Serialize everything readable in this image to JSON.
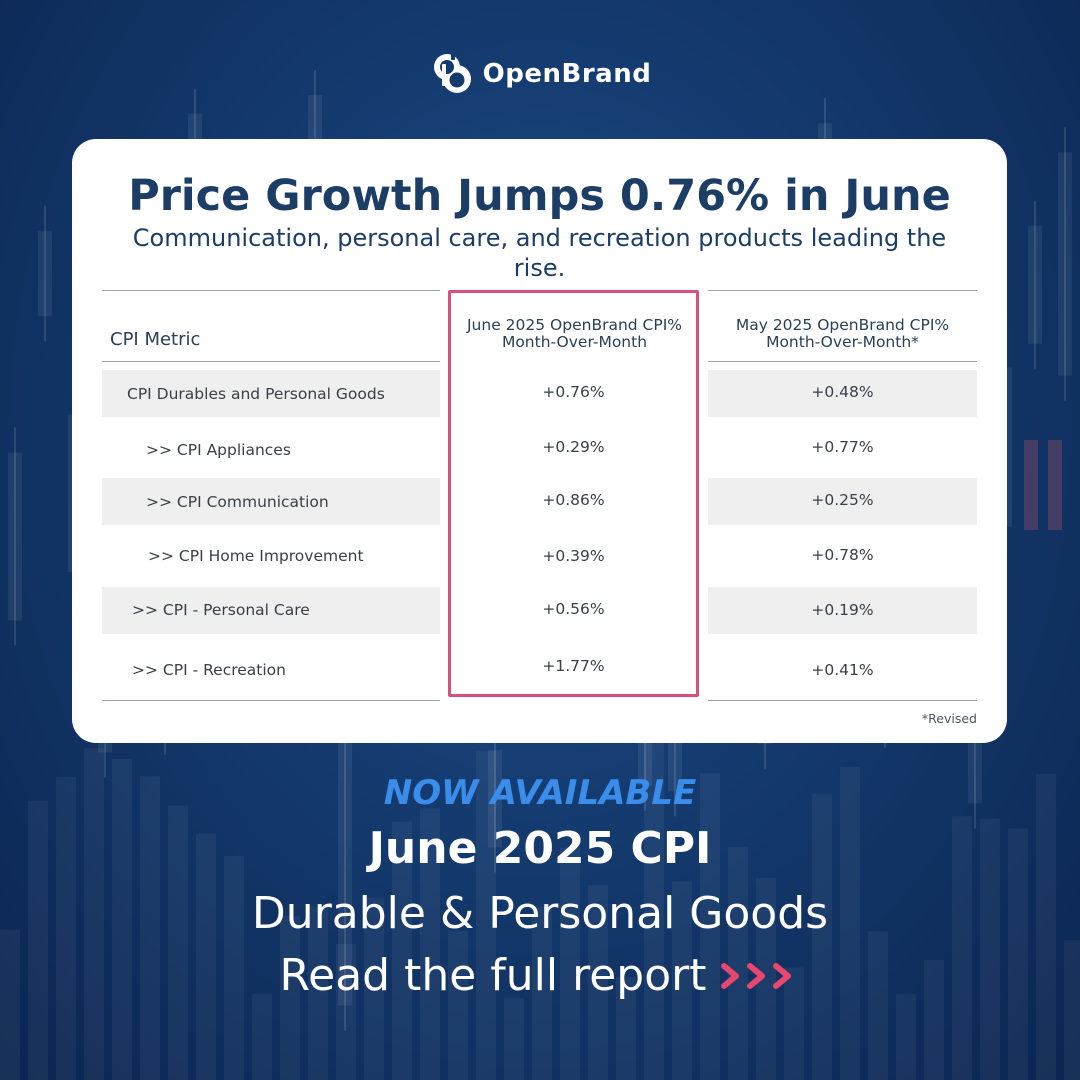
{
  "brand": {
    "name": "OpenBrand",
    "logo_icon": "ob-logo-icon"
  },
  "headline": "Price Growth Jumps 0.76% in June",
  "subheadline": "Communication, personal care, and recreation products leading the rise.",
  "chart_data": {
    "type": "table",
    "columns": [
      "CPI Metric",
      "June 2025 OpenBrand CPI% Month-Over-Month",
      "May 2025 OpenBrand CPI% Month-Over-Month*"
    ],
    "header_lines": {
      "june": [
        "June 2025 OpenBrand CPI%",
        "Month-Over-Month"
      ],
      "may": [
        "May 2025 OpenBrand CPI%",
        "Month-Over-Month*"
      ]
    },
    "rows": [
      {
        "metric": "CPI Durables and Personal Goods",
        "june": "+0.76%",
        "may": "+0.48%"
      },
      {
        "metric": ">> CPI Appliances",
        "june": "+0.29%",
        "may": "+0.77%"
      },
      {
        "metric": ">> CPI Communication",
        "june": "+0.86%",
        "may": "+0.25%"
      },
      {
        "metric": ">> CPI Home Improvement",
        "june": "+0.39%",
        "may": "+0.78%"
      },
      {
        "metric": ">> CPI - Personal Care",
        "june": "+0.56%",
        "may": "+0.19%"
      },
      {
        "metric": ">> CPI - Recreation",
        "june": "+1.77%",
        "may": "+0.41%"
      }
    ],
    "highlighted_column": "June 2025 OpenBrand CPI% Month-Over-Month",
    "footnote": "*Revised"
  },
  "cta": {
    "tag": "NOW AVAILABLE",
    "title": "June 2025 CPI",
    "subtitle": "Durable & Personal Goods",
    "link": "Read the full report",
    "link_icon": "chevrons-right-icon"
  },
  "colors": {
    "navy_text": "#1c3d66",
    "highlight": "#d9507a",
    "accent_blue": "#3a8dea",
    "chevron_pink": "#e8476f",
    "background": "#143a6e"
  }
}
